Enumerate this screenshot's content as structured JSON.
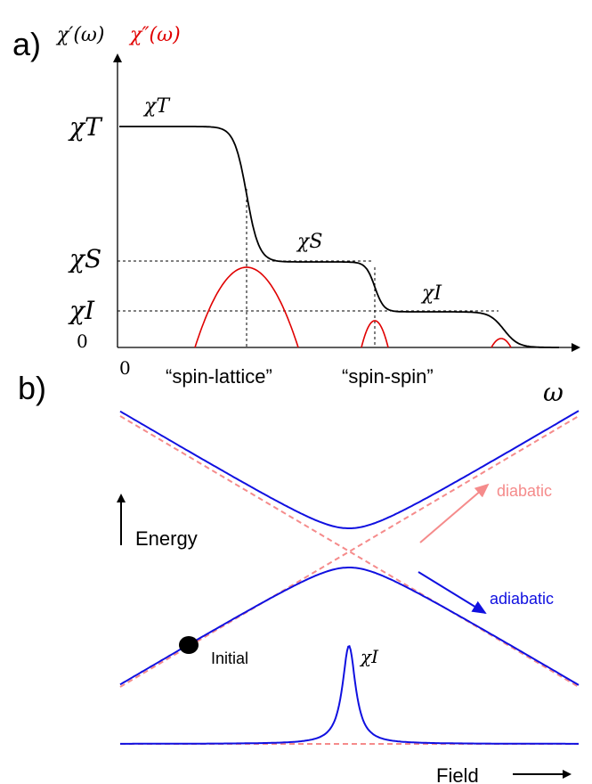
{
  "panel_a": {
    "label": "a)",
    "ylabel_real": "χ′(ω)",
    "ylabel_imag": "χ″(ω)",
    "ytick_T": "χT",
    "ytick_S": "χS",
    "ytick_I": "χI",
    "ytick_0": "0",
    "xtick_0": "0",
    "xlabel": "ω",
    "curve_label_T": "χT",
    "curve_label_S": "χS",
    "curve_label_I": "χI",
    "caption_spin_lattice": "“spin-lattice”",
    "caption_spin_spin": "“spin-spin”",
    "colors": {
      "real": "#000000",
      "imag": "#e00000"
    }
  },
  "panel_b": {
    "label": "b)",
    "energy_label": "Energy",
    "field_label": "Field",
    "diabatic_label": "diabatic",
    "adiabatic_label": "adiabatic",
    "initial_label": "Initial",
    "peak_label": "χI",
    "colors": {
      "adiabatic": "#1010e0",
      "diabatic": "#f58b8b",
      "initial": "#000000"
    }
  }
}
